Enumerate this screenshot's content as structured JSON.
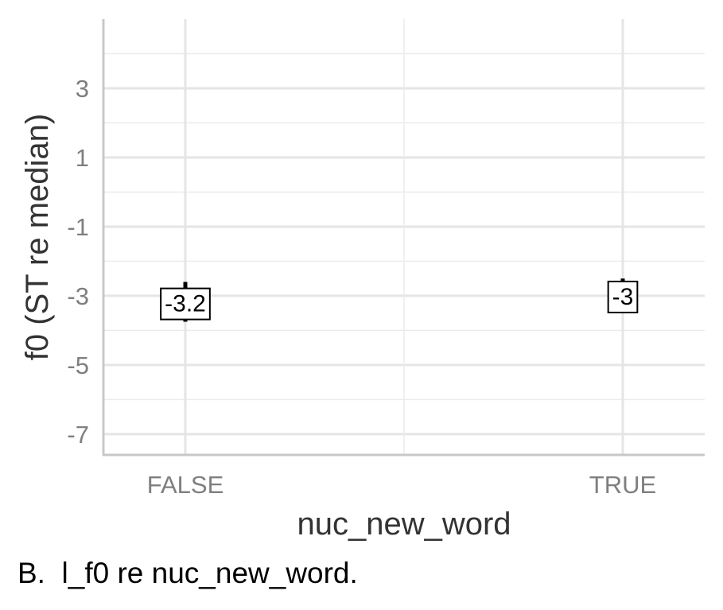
{
  "chart_data": {
    "type": "scatter",
    "xlabel": "nuc_new_word",
    "ylabel": "f0 (ST re median)",
    "categories": [
      "FALSE",
      "TRUE"
    ],
    "points": [
      {
        "x": "FALSE",
        "y": -3.2,
        "ymin": -3.75,
        "ymax": -2.6,
        "label": "-3.2"
      },
      {
        "x": "TRUE",
        "y": -3.0,
        "ymin": -3.5,
        "ymax": -2.5,
        "label": "-3"
      }
    ],
    "yticks": [
      3,
      1,
      -1,
      -3,
      -5,
      -7
    ],
    "ytick_labels": [
      "3",
      "1",
      "-1",
      "-3",
      "-5",
      "-7"
    ],
    "ylim": [
      -7.6,
      5.0
    ],
    "grid": true,
    "legend": "none"
  },
  "caption": "B.  l_f0 re nuc_new_word."
}
